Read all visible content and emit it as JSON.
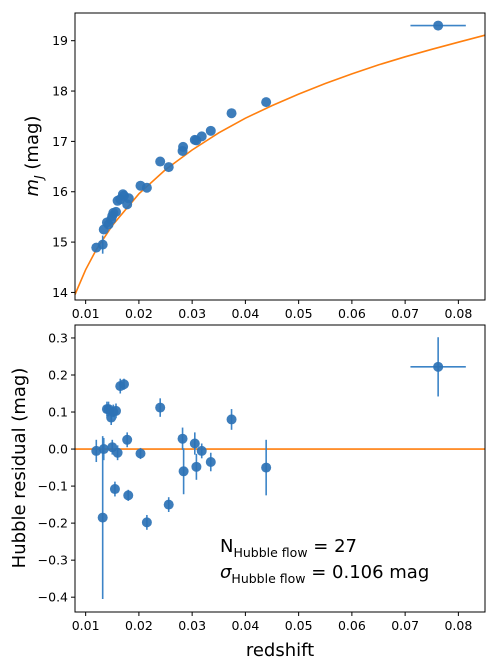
{
  "colors": {
    "points": "#2d72b5",
    "errorbars": "#3c84c7",
    "curve": "#ff7f0e",
    "axes": "#000000"
  },
  "chart_data": [
    {
      "type": "scatter",
      "xlabel": "",
      "ylabel": "m_J (mag)",
      "ylabel_parts": {
        "main": "m",
        "sub": "J",
        "tail": "(mag)"
      },
      "xlim": [
        0.008,
        0.085
      ],
      "ylim": [
        13.85,
        19.55
      ],
      "xticks": [
        0.01,
        0.02,
        0.03,
        0.04,
        0.05,
        0.06,
        0.07,
        0.08
      ],
      "xtick_labels": [
        "0.01",
        "0.02",
        "0.03",
        "0.04",
        "0.05",
        "0.06",
        "0.07",
        "0.08"
      ],
      "yticks": [
        14,
        15,
        16,
        17,
        18,
        19
      ],
      "ytick_labels": [
        "14",
        "15",
        "16",
        "17",
        "18",
        "19"
      ],
      "grid": false,
      "series": [
        {
          "type": "scatter",
          "x": [
            0.012,
            0.0132,
            0.0134,
            0.014,
            0.0143,
            0.0148,
            0.015,
            0.0152,
            0.0157,
            0.016,
            0.0165,
            0.017,
            0.0172,
            0.0178,
            0.0181,
            0.0203,
            0.0215,
            0.024,
            0.0256,
            0.0282,
            0.0283,
            0.0305,
            0.0308,
            0.0318,
            0.0335,
            0.0374,
            0.0439,
            0.0762
          ],
          "y": [
            14.89,
            14.95,
            15.25,
            15.39,
            15.35,
            15.45,
            15.52,
            15.58,
            15.6,
            15.82,
            15.85,
            15.95,
            15.92,
            15.75,
            15.87,
            16.12,
            16.08,
            16.6,
            16.49,
            16.81,
            16.89,
            17.03,
            17.02,
            17.1,
            17.21,
            17.56,
            17.78,
            19.3
          ],
          "xerr": [
            0,
            0,
            0,
            0,
            0,
            0,
            0,
            0,
            0,
            0,
            0,
            0,
            0,
            0,
            0,
            0,
            0,
            0,
            0,
            0,
            0,
            0,
            0,
            0,
            0,
            0,
            0,
            0.0052
          ],
          "yerr": [
            0,
            0.18,
            0,
            0,
            0,
            0,
            0,
            0,
            0,
            0,
            0,
            0,
            0,
            0,
            0,
            0,
            0,
            0,
            0,
            0,
            0,
            0,
            0,
            0,
            0,
            0,
            0,
            0
          ]
        },
        {
          "type": "line",
          "x": [
            0.008,
            0.01,
            0.012,
            0.015,
            0.02,
            0.025,
            0.03,
            0.035,
            0.04,
            0.045,
            0.05,
            0.055,
            0.06,
            0.065,
            0.07,
            0.075,
            0.08,
            0.085
          ],
          "y": [
            13.96,
            14.45,
            14.85,
            15.33,
            15.96,
            16.44,
            16.83,
            17.17,
            17.46,
            17.71,
            17.94,
            18.15,
            18.34,
            18.52,
            18.68,
            18.83,
            18.97,
            19.11
          ]
        }
      ]
    },
    {
      "type": "scatter",
      "xlabel": "redshift",
      "ylabel": "Hubble residual (mag)",
      "xlim": [
        0.008,
        0.085
      ],
      "ylim": [
        -0.44,
        0.335
      ],
      "xticks": [
        0.01,
        0.02,
        0.03,
        0.04,
        0.05,
        0.06,
        0.07,
        0.08
      ],
      "xtick_labels": [
        "0.01",
        "0.02",
        "0.03",
        "0.04",
        "0.05",
        "0.06",
        "0.07",
        "0.08"
      ],
      "yticks": [
        -0.4,
        -0.3,
        -0.2,
        -0.1,
        0.0,
        0.1,
        0.2,
        0.3
      ],
      "ytick_labels": [
        "−0.4",
        "−0.3",
        "−0.2",
        "−0.1",
        "0.0",
        "0.1",
        "0.2",
        "0.3"
      ],
      "grid": false,
      "reference_line": 0.0,
      "series": [
        {
          "type": "scatter",
          "x": [
            0.012,
            0.0132,
            0.0134,
            0.014,
            0.0143,
            0.0148,
            0.015,
            0.0152,
            0.0155,
            0.0157,
            0.016,
            0.0165,
            0.0172,
            0.0178,
            0.018,
            0.0203,
            0.0215,
            0.024,
            0.0256,
            0.0282,
            0.0284,
            0.0305,
            0.0308,
            0.0318,
            0.0335,
            0.0374,
            0.0439,
            0.0762
          ],
          "y": [
            -0.005,
            -0.185,
            0.0,
            0.108,
            0.108,
            0.085,
            0.005,
            0.1,
            -0.108,
            0.103,
            -0.01,
            0.17,
            0.175,
            0.025,
            -0.125,
            -0.012,
            -0.198,
            0.112,
            -0.15,
            0.028,
            -0.06,
            0.015,
            -0.048,
            -0.005,
            -0.035,
            0.08,
            -0.05,
            0.222
          ],
          "xerr": [
            0,
            0,
            0,
            0,
            0,
            0,
            0,
            0,
            0,
            0,
            0,
            0,
            0,
            0,
            0,
            0,
            0,
            0,
            0,
            0,
            0,
            0,
            0,
            0,
            0,
            0,
            0,
            0.0052
          ],
          "yerr": [
            0.03,
            0.22,
            0.03,
            0.02,
            0.02,
            0.02,
            0.02,
            0.02,
            0.02,
            0.02,
            0.02,
            0.02,
            0.015,
            0.02,
            0.015,
            0.015,
            0.02,
            0.025,
            0.02,
            0.03,
            0.062,
            0.03,
            0.035,
            0.02,
            0.025,
            0.028,
            0.075,
            0.08
          ]
        }
      ],
      "annotations": [
        {
          "main": "N",
          "sub": "Hubble flow",
          "tail": " = 27"
        },
        {
          "main": "σ",
          "sub": "Hubble flow",
          "tail": " = 0.106 mag"
        }
      ]
    }
  ]
}
